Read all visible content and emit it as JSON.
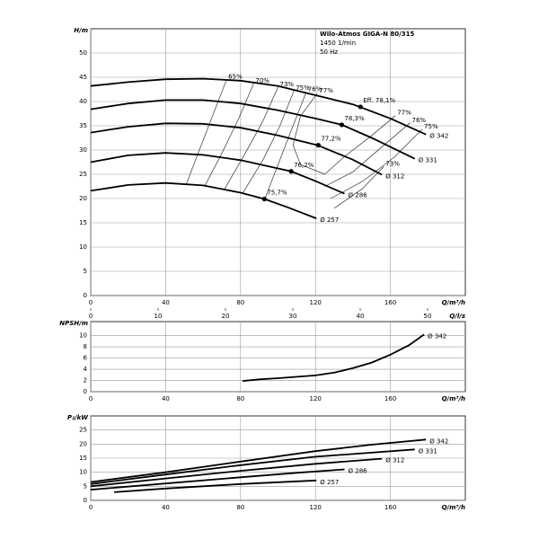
{
  "chart_data": [
    {
      "type": "line",
      "y_label": "H/m",
      "x_label": "Q/m³/h",
      "x2_label": "Q/l/s",
      "annotations": [
        "Wilo-Atmos GIGA-N 80/315",
        "1450 1/min",
        "50 Hz"
      ],
      "xlim": [
        0,
        200
      ],
      "xticks": [
        0,
        40,
        80,
        120,
        160
      ],
      "x2lim": [
        0,
        55.6
      ],
      "x2ticks": [
        0,
        10,
        20,
        30,
        40,
        50
      ],
      "ylim": [
        0,
        55
      ],
      "yticks": [
        0,
        5,
        10,
        15,
        20,
        25,
        30,
        35,
        40,
        45,
        50
      ],
      "grid": true,
      "series": [
        {
          "name": "Ø 342",
          "color": "#000000",
          "x": [
            0,
            20,
            40,
            60,
            80,
            100,
            120,
            140,
            160,
            179
          ],
          "values": [
            43.2,
            44,
            44.6,
            44.7,
            44.3,
            43.2,
            41.3,
            39.4,
            36.5,
            33.2
          ]
        },
        {
          "name": "Ø 331",
          "color": "#000000",
          "x": [
            0,
            20,
            40,
            60,
            80,
            100,
            120,
            134,
            150,
            173
          ],
          "values": [
            38.4,
            39.6,
            40.3,
            40.3,
            39.6,
            38.2,
            36.5,
            35.2,
            32.5,
            28.2
          ]
        },
        {
          "name": "Ø 312",
          "color": "#000000",
          "x": [
            0,
            20,
            40,
            60,
            80,
            100,
            121,
            140,
            155.5
          ],
          "values": [
            33.6,
            34.8,
            35.5,
            35.4,
            34.6,
            33,
            31,
            28,
            24.9
          ]
        },
        {
          "name": "Ø 286",
          "color": "#000000",
          "x": [
            0,
            20,
            40,
            60,
            80,
            107,
            120,
            135.5
          ],
          "values": [
            27.5,
            28.9,
            29.4,
            29,
            27.9,
            25.6,
            23.6,
            21
          ]
        },
        {
          "name": "Ø 257",
          "color": "#000000",
          "x": [
            0,
            20,
            40,
            60,
            80,
            92.7,
            105,
            120.5
          ],
          "values": [
            21.6,
            22.8,
            23.2,
            22.7,
            21.2,
            19.9,
            18.2,
            15.9
          ]
        }
      ],
      "efficiency_lines": [
        {
          "label": "65%",
          "x": [
            72.5,
            65,
            58,
            51
          ],
          "values": [
            44.5,
            37,
            30,
            22.9
          ]
        },
        {
          "label": "70%",
          "x": [
            87,
            79,
            70,
            61
          ],
          "values": [
            43.7,
            36.5,
            29.3,
            22.7
          ]
        },
        {
          "label": "73%",
          "x": [
            100,
            92,
            82,
            71.5
          ],
          "values": [
            43,
            36,
            29,
            22
          ]
        },
        {
          "label": "75%",
          "x": [
            108.5,
            101,
            92,
            81
          ],
          "values": [
            42.2,
            35,
            28,
            21
          ]
        },
        {
          "label": "76%",
          "x": [
            115,
            108,
            100,
            93
          ],
          "values": [
            41.9,
            35,
            27,
            20
          ]
        },
        {
          "label": "77%",
          "x": [
            121,
            112,
            108,
            112,
            125
          ],
          "values": [
            41.7,
            37,
            31,
            27,
            25
          ]
        },
        {
          "label": "77%",
          "x": [
            162.7,
            150,
            135,
            125
          ],
          "values": [
            37.1,
            33,
            28.5,
            25
          ]
        },
        {
          "label": "76%",
          "x": [
            170.5,
            155,
            140,
            125
          ],
          "values": [
            35.6,
            30.5,
            25.5,
            22.5
          ]
        },
        {
          "label": "75%",
          "x": [
            177,
            162,
            145,
            128
          ],
          "values": [
            34.3,
            28.5,
            23.5,
            20
          ]
        },
        {
          "label": "73%",
          "x": [
            156.5,
            145,
            130
          ],
          "values": [
            26.6,
            22,
            18
          ]
        }
      ],
      "best_points": [
        {
          "label": "Eff. 78,1%",
          "x": 144,
          "y": 38.9
        },
        {
          "label": "78,3%",
          "x": 134,
          "y": 35.2
        },
        {
          "label": "77,2%",
          "x": 121.5,
          "y": 31
        },
        {
          "label": "76,2%",
          "x": 107,
          "y": 25.6
        },
        {
          "label": "75,7%",
          "x": 92.7,
          "y": 19.9
        }
      ]
    },
    {
      "type": "line",
      "y_label": "NPSH/m",
      "x_label": "Q/m³/h",
      "xlim": [
        0,
        200
      ],
      "xticks": [
        0,
        40,
        80,
        120,
        160
      ],
      "ylim": [
        0,
        12.5
      ],
      "yticks": [
        0,
        2,
        4,
        6,
        8,
        10
      ],
      "grid": true,
      "series": [
        {
          "name": "Ø 342",
          "color": "#000000",
          "x": [
            81,
            90,
            100,
            120,
            130,
            140,
            150,
            160,
            170,
            178
          ],
          "values": [
            1.9,
            2.2,
            2.4,
            2.9,
            3.4,
            4.2,
            5.2,
            6.6,
            8.3,
            10.2
          ]
        }
      ]
    },
    {
      "type": "line",
      "y_label": "P₂/kW",
      "x_label": "Q/m³/h",
      "xlim": [
        0,
        200
      ],
      "xticks": [
        0,
        40,
        80,
        120,
        160
      ],
      "ylim": [
        0,
        30
      ],
      "yticks": [
        0,
        5,
        10,
        15,
        20,
        25
      ],
      "grid": true,
      "series": [
        {
          "name": "Ø 342",
          "color": "#000000",
          "x": [
            0,
            40,
            80,
            120,
            150,
            179
          ],
          "values": [
            6.5,
            10,
            13.8,
            17.5,
            19.8,
            21.6
          ]
        },
        {
          "name": "Ø 331",
          "color": "#000000",
          "x": [
            0,
            40,
            80,
            120,
            173
          ],
          "values": [
            5.8,
            9.2,
            12.5,
            15.5,
            18.1
          ]
        },
        {
          "name": "Ø 312",
          "color": "#000000",
          "x": [
            0,
            40,
            80,
            120,
            155.5
          ],
          "values": [
            5,
            7.8,
            10.5,
            13,
            14.8
          ]
        },
        {
          "name": "Ø 286",
          "color": "#000000",
          "x": [
            0,
            40,
            80,
            110,
            135.5
          ],
          "values": [
            3.8,
            6,
            8.2,
            9.8,
            11
          ]
        },
        {
          "name": "Ø 257",
          "color": "#000000",
          "x": [
            12.5,
            40,
            80,
            120.5
          ],
          "values": [
            2.9,
            4.2,
            5.8,
            7.1
          ]
        }
      ]
    }
  ]
}
